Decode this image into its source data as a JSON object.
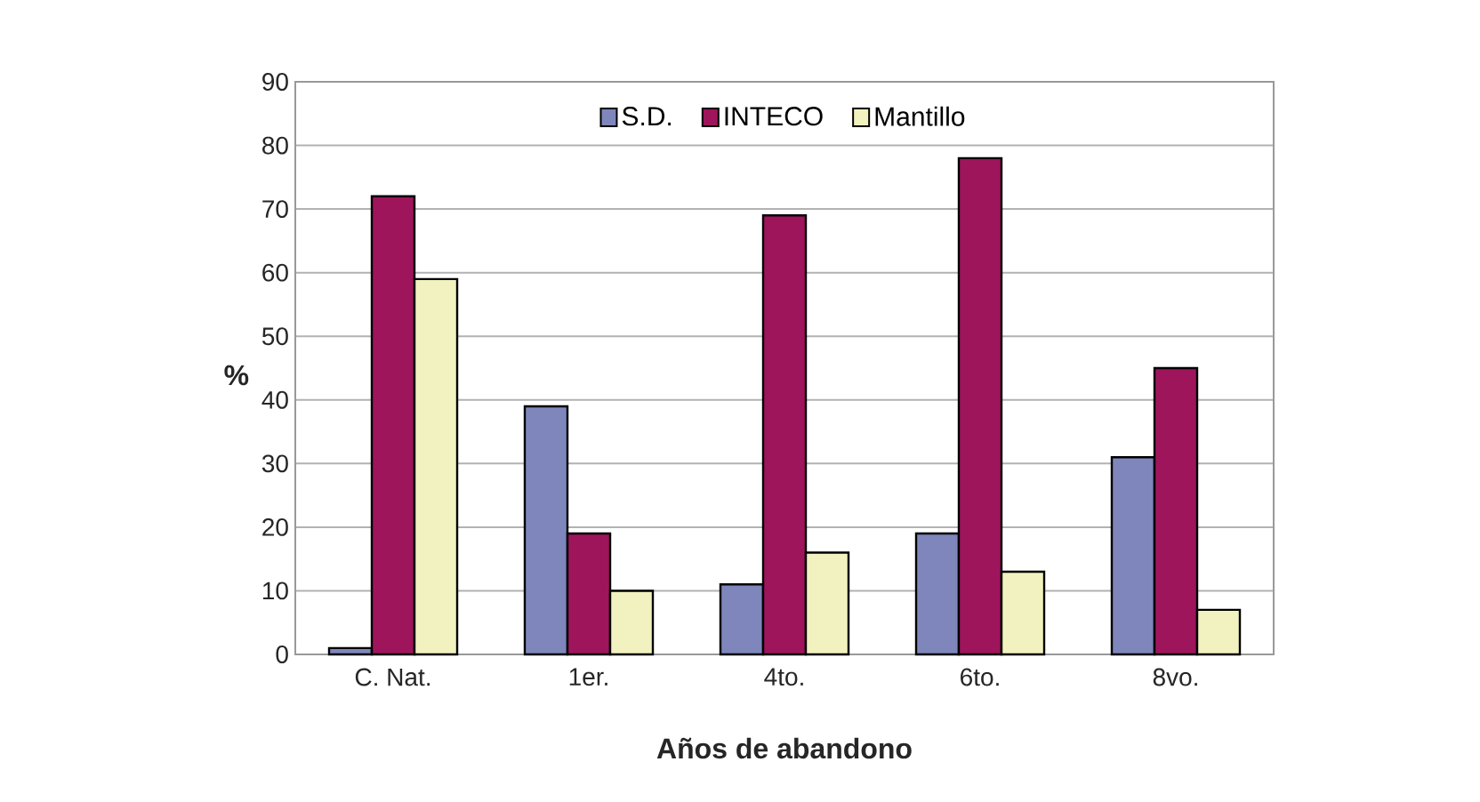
{
  "chart_data": {
    "type": "bar",
    "xlabel": "Años de abandono",
    "ylabel": "%",
    "categories": [
      "C. Nat.",
      "1er.",
      "4to.",
      "6to.",
      "8vo."
    ],
    "series": [
      {
        "name": "S.D.",
        "color": "#7f86bb",
        "values": [
          1,
          39,
          11,
          19,
          31
        ]
      },
      {
        "name": "INTECO",
        "color": "#9e155c",
        "values": [
          72,
          19,
          69,
          78,
          45
        ]
      },
      {
        "name": "Mantillo",
        "color": "#f2f2c0",
        "values": [
          59,
          10,
          16,
          13,
          7
        ]
      }
    ],
    "ylim": [
      0,
      90
    ],
    "yticks": [
      0,
      10,
      20,
      30,
      40,
      50,
      60,
      70,
      80,
      90
    ],
    "grid": "y",
    "legend": "top"
  }
}
